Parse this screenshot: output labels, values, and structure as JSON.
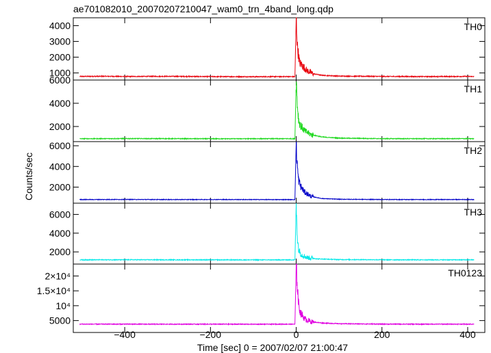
{
  "chart_data": {
    "type": "line",
    "title": "ae701082010_20070207210047_wam0_trn_4band_long.qdp",
    "xlabel": "Time [sec] 0 = 2007/02/07 21:00:47",
    "ylabel": "Counts/sec",
    "xlim": [
      -520,
      440
    ],
    "x_ticks": [
      -400,
      -200,
      0,
      200,
      400
    ],
    "x_tick_labels": [
      "−400",
      "−200",
      "0",
      "200",
      "400"
    ],
    "grid": false,
    "legend": "none",
    "panels": [
      {
        "name": "TH0",
        "color": "#e8000b",
        "ylim": [
          550,
          4500
        ],
        "y_ticks": [
          1000,
          2000,
          3000,
          4000
        ],
        "y_tick_labels": [
          "1000",
          "2000",
          "3000",
          "4000"
        ],
        "baseline": 780,
        "peak": 4450,
        "points": [
          [
            -500,
            780
          ],
          [
            -450,
            790
          ],
          [
            -400,
            775
          ],
          [
            -300,
            785
          ],
          [
            -200,
            770
          ],
          [
            -100,
            760
          ],
          [
            -20,
            770
          ],
          [
            -3,
            760
          ],
          [
            0,
            4450
          ],
          [
            3,
            2600
          ],
          [
            8,
            1650
          ],
          [
            15,
            1450
          ],
          [
            25,
            1150
          ],
          [
            40,
            950
          ],
          [
            60,
            850
          ],
          [
            100,
            800
          ],
          [
            200,
            780
          ],
          [
            300,
            770
          ],
          [
            400,
            780
          ],
          [
            410,
            775
          ]
        ]
      },
      {
        "name": "TH1",
        "color": "#1ed81e",
        "ylim": [
          700,
          6000
        ],
        "y_ticks": [
          2000,
          4000,
          6000
        ],
        "y_tick_labels": [
          "2000",
          "4000",
          "6000"
        ],
        "baseline": 950,
        "peak": 6000,
        "points": [
          [
            -500,
            950
          ],
          [
            -400,
            960
          ],
          [
            -300,
            955
          ],
          [
            -200,
            945
          ],
          [
            -100,
            950
          ],
          [
            -20,
            950
          ],
          [
            -3,
            945
          ],
          [
            0,
            6000
          ],
          [
            3,
            3700
          ],
          [
            6,
            2500
          ],
          [
            10,
            2100
          ],
          [
            20,
            1600
          ],
          [
            35,
            1300
          ],
          [
            60,
            1100
          ],
          [
            100,
            1000
          ],
          [
            200,
            955
          ],
          [
            300,
            950
          ],
          [
            400,
            955
          ],
          [
            410,
            950
          ]
        ]
      },
      {
        "name": "TH2",
        "color": "#0000c8",
        "ylim": [
          450,
          6400
        ],
        "y_ticks": [
          2000,
          4000,
          6000
        ],
        "y_tick_labels": [
          "2000",
          "4000",
          "6000"
        ],
        "baseline": 800,
        "peak": 6400,
        "points": [
          [
            -500,
            800
          ],
          [
            -400,
            810
          ],
          [
            -300,
            800
          ],
          [
            -200,
            805
          ],
          [
            -100,
            800
          ],
          [
            -20,
            795
          ],
          [
            -3,
            800
          ],
          [
            0,
            6400
          ],
          [
            2,
            4400
          ],
          [
            5,
            2800
          ],
          [
            10,
            2100
          ],
          [
            20,
            1500
          ],
          [
            35,
            1100
          ],
          [
            60,
            900
          ],
          [
            100,
            830
          ],
          [
            200,
            805
          ],
          [
            300,
            800
          ],
          [
            400,
            805
          ],
          [
            410,
            800
          ]
        ]
      },
      {
        "name": "TH3",
        "color": "#00e8e8",
        "ylim": [
          700,
          7200
        ],
        "y_ticks": [
          2000,
          4000,
          6000
        ],
        "y_tick_labels": [
          "2000",
          "4000",
          "6000"
        ],
        "baseline": 1150,
        "peak": 7200,
        "points": [
          [
            -500,
            1150
          ],
          [
            -400,
            1160
          ],
          [
            -300,
            1155
          ],
          [
            -200,
            1150
          ],
          [
            -100,
            1145
          ],
          [
            -20,
            1150
          ],
          [
            -3,
            1150
          ],
          [
            0,
            7200
          ],
          [
            3,
            3300
          ],
          [
            6,
            2200
          ],
          [
            12,
            1700
          ],
          [
            25,
            1400
          ],
          [
            50,
            1250
          ],
          [
            100,
            1180
          ],
          [
            200,
            1160
          ],
          [
            300,
            1150
          ],
          [
            400,
            1155
          ],
          [
            410,
            1150
          ]
        ]
      },
      {
        "name": "TH0123",
        "color": "#e000e0",
        "ylim": [
          1000,
          24000
        ],
        "y_ticks": [
          5000,
          10000,
          15000,
          20000
        ],
        "y_tick_labels": [
          "5000",
          "10⁴",
          "1.5×10⁴",
          "2×10⁴"
        ],
        "baseline": 3800,
        "peak": 23500,
        "points": [
          [
            -500,
            3800
          ],
          [
            -400,
            3810
          ],
          [
            -300,
            3790
          ],
          [
            -200,
            3800
          ],
          [
            -100,
            3780
          ],
          [
            -20,
            3800
          ],
          [
            -3,
            3790
          ],
          [
            0,
            23500
          ],
          [
            3,
            16000
          ],
          [
            6,
            10000
          ],
          [
            10,
            7600
          ],
          [
            20,
            5600
          ],
          [
            35,
            4600
          ],
          [
            60,
            4200
          ],
          [
            100,
            3950
          ],
          [
            200,
            3820
          ],
          [
            300,
            3800
          ],
          [
            400,
            3810
          ],
          [
            410,
            3800
          ]
        ]
      }
    ]
  }
}
